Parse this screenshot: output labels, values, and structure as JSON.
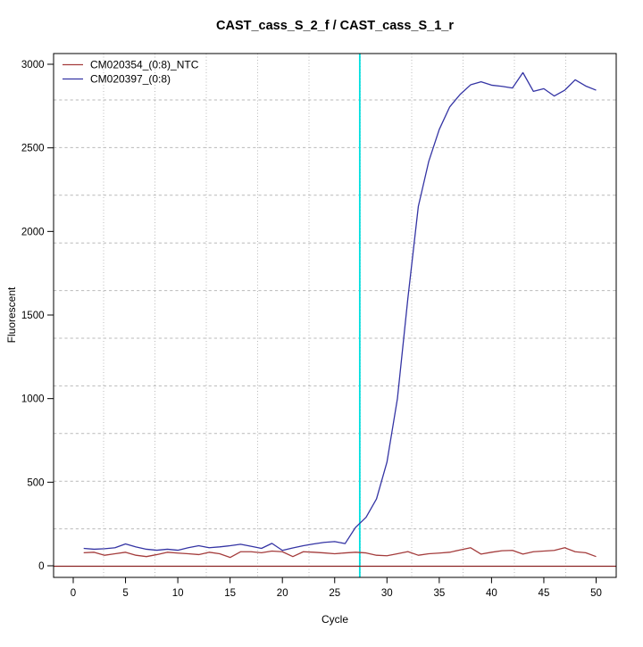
{
  "chart_data": {
    "type": "line",
    "title": "CAST_cass_S_2_f / CAST_cass_S_1_r",
    "xlabel": "Cycle",
    "ylabel": "Fluorescent",
    "xlim": [
      0,
      50
    ],
    "ylim": [
      0,
      3000
    ],
    "x_ticks": [
      0,
      5,
      10,
      15,
      20,
      25,
      30,
      35,
      40,
      45,
      50
    ],
    "y_ticks": [
      0,
      500,
      1000,
      1500,
      2000,
      2500,
      3000
    ],
    "grid": true,
    "legend_position": "top-left",
    "x": [
      1,
      2,
      3,
      4,
      5,
      6,
      7,
      8,
      9,
      10,
      11,
      12,
      13,
      14,
      15,
      16,
      17,
      18,
      19,
      20,
      21,
      22,
      23,
      24,
      25,
      26,
      27,
      28,
      29,
      30,
      31,
      32,
      33,
      34,
      35,
      36,
      37,
      38,
      39,
      40,
      41,
      42,
      43,
      44,
      45,
      46,
      47,
      48,
      49,
      50
    ],
    "series": [
      {
        "name": "CM020354_(0:8)_NTC",
        "color": "#a43c3c",
        "values": [
          78,
          81,
          63,
          72,
          81,
          63,
          55,
          67,
          81,
          76,
          72,
          67,
          81,
          72,
          50,
          84,
          84,
          78,
          88,
          84,
          55,
          84,
          81,
          77,
          72,
          77,
          81,
          77,
          63,
          60,
          72,
          85,
          63,
          72,
          76,
          81,
          95,
          108,
          70,
          81,
          90,
          92,
          70,
          84,
          88,
          92,
          108,
          84,
          78,
          55
        ]
      },
      {
        "name": "CM020397_(0:8)",
        "color": "#3434a4",
        "values": [
          104,
          99,
          102,
          108,
          131,
          113,
          99,
          93,
          99,
          93,
          108,
          120,
          108,
          113,
          120,
          129,
          117,
          104,
          134,
          92,
          107,
          120,
          131,
          140,
          145,
          133,
          230,
          290,
          400,
          620,
          1000,
          1600,
          2150,
          2420,
          2610,
          2745,
          2820,
          2877,
          2895,
          2875,
          2868,
          2858,
          2950,
          2838,
          2854,
          2810,
          2845,
          2907,
          2870,
          2845
        ]
      }
    ],
    "annotations": {
      "threshold_line_y": 0,
      "threshold_line_color": "#8b2424",
      "ct_vline_x": 27.4,
      "ct_vline_color": "#00e0e0"
    }
  },
  "colors": {
    "grid": "#b9b9b9",
    "axis": "#000000",
    "background": "#ffffff"
  }
}
